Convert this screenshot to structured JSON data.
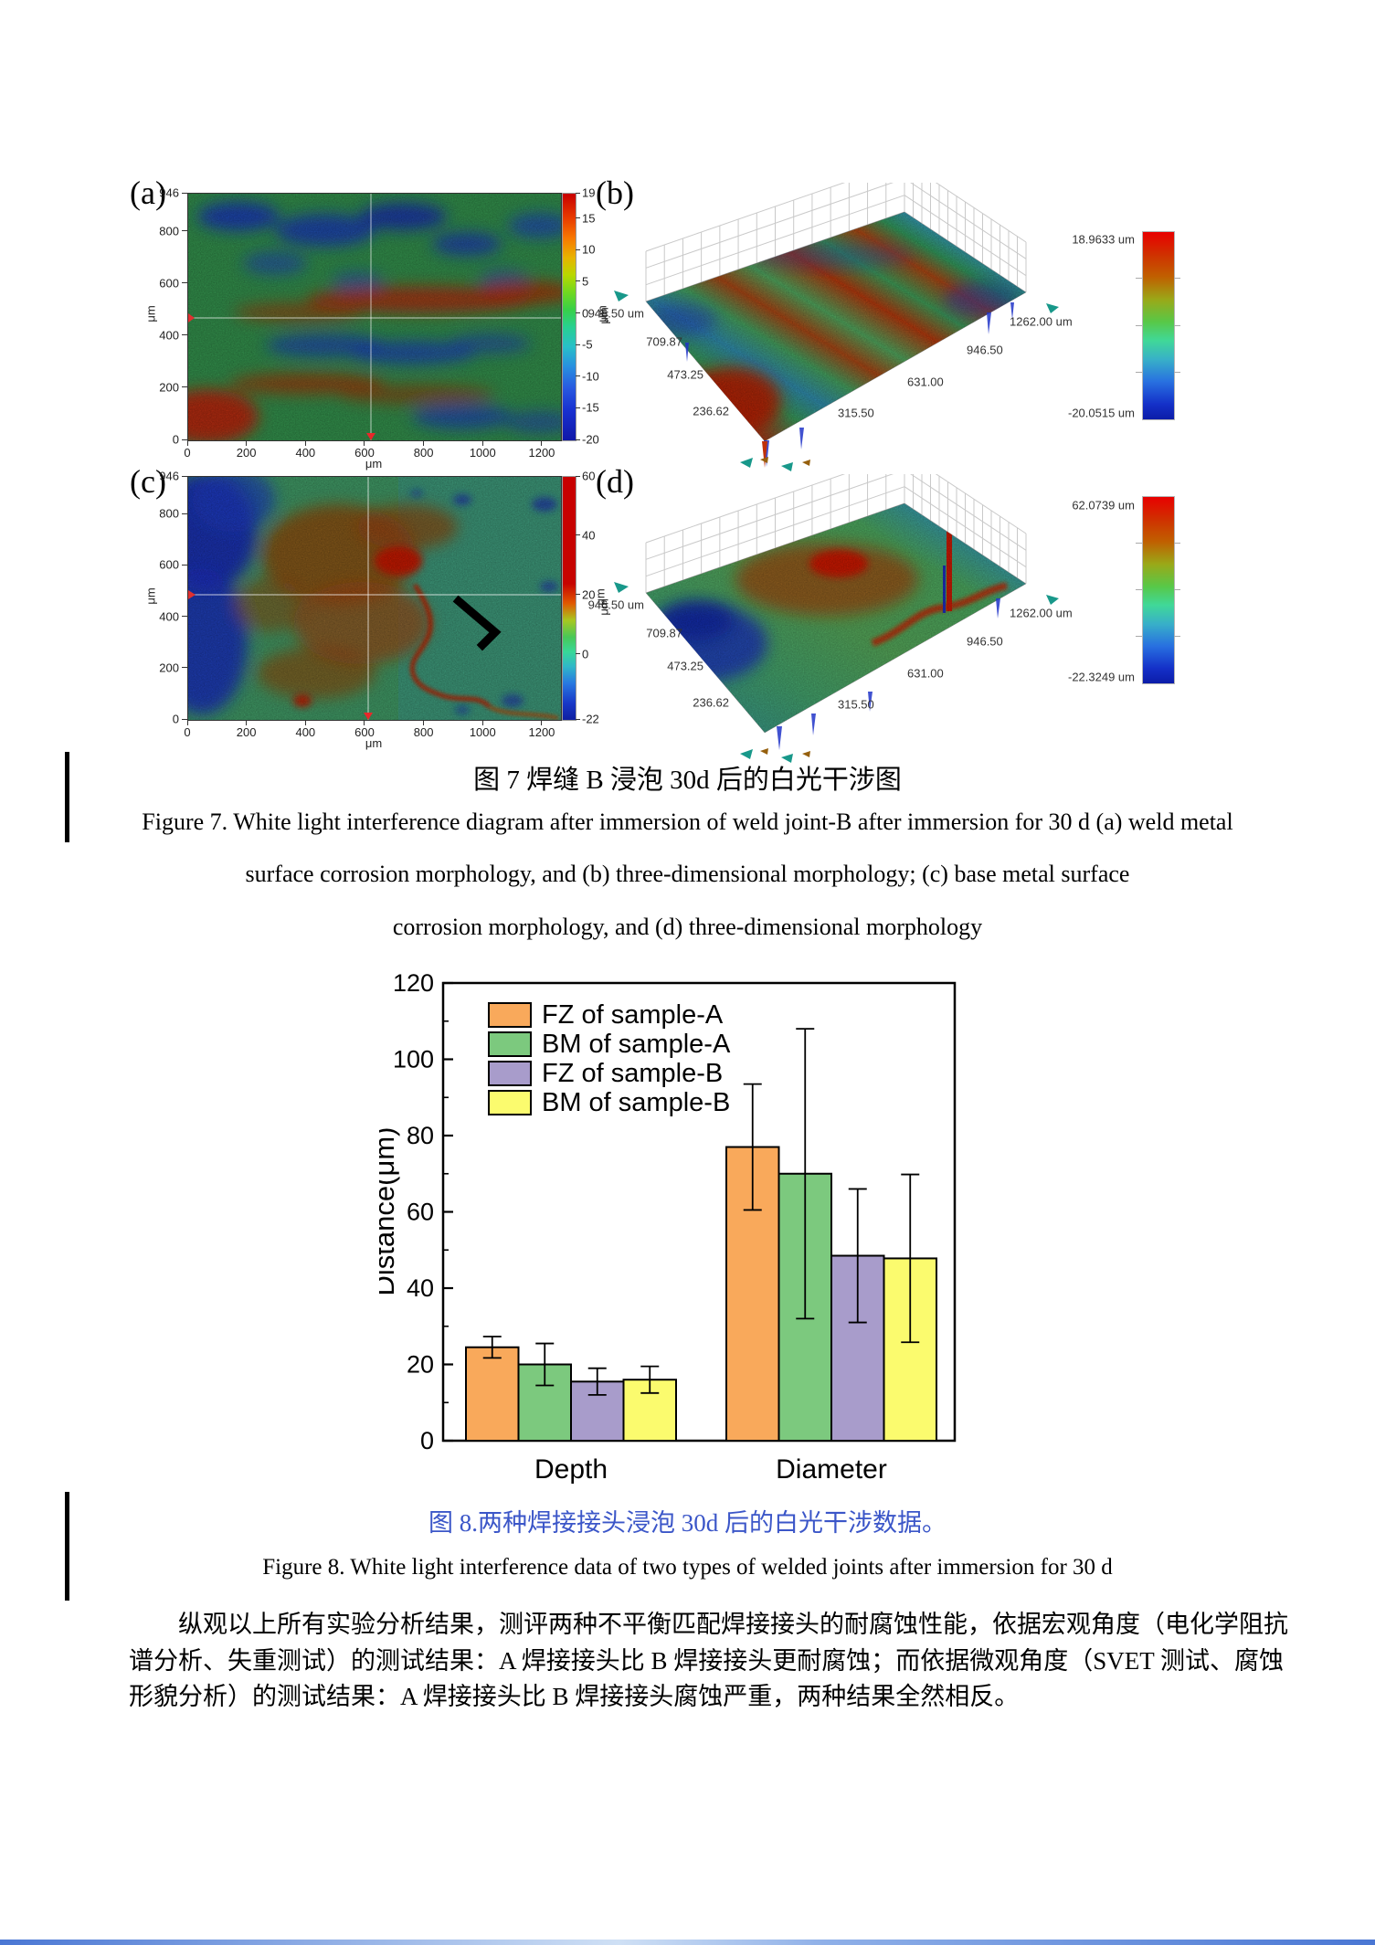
{
  "figure7": {
    "panel_a": {
      "label": "(a)",
      "y_ticks": [
        "946",
        "800",
        "600",
        "400",
        "200",
        "0"
      ],
      "x_ticks": [
        "0",
        "200",
        "400",
        "600",
        "800",
        "1000",
        "1200"
      ],
      "x_unit": "μm",
      "y_unit": "μm",
      "colorbar_ticks": [
        "19",
        "15",
        "10",
        "5",
        "0",
        "-5",
        "-10",
        "-15",
        "-20"
      ],
      "colorbar_unit": "μm"
    },
    "panel_b": {
      "label": "(b)",
      "left_ticks": [
        "946.50 um",
        "709.87",
        "473.25",
        "236.62"
      ],
      "right_ticks": [
        "1262.00 um",
        "946.50",
        "631.00",
        "315.50"
      ],
      "z_unit": "μm",
      "colorbar_top": "18.9633 um",
      "colorbar_bottom": "-20.0515 um"
    },
    "panel_c": {
      "label": "(c)",
      "y_ticks": [
        "946",
        "800",
        "600",
        "400",
        "200",
        "0"
      ],
      "x_ticks": [
        "0",
        "200",
        "400",
        "600",
        "800",
        "1000",
        "1200"
      ],
      "x_unit": "μm",
      "y_unit": "μm",
      "colorbar_ticks": [
        "60",
        "40",
        "20",
        "0",
        "-22"
      ],
      "colorbar_unit": "μm"
    },
    "panel_d": {
      "label": "(d)",
      "left_ticks": [
        "946.50 um",
        "709.87",
        "473.25",
        "236.62"
      ],
      "right_ticks": [
        "1262.00 um",
        "946.50",
        "631.00",
        "315.50"
      ],
      "z_unit": "μm",
      "colorbar_top": "62.0739 um",
      "colorbar_bottom": "-22.3249 um"
    },
    "caption_zh": "图 7  焊缝 B 浸泡 30d 后的白光干涉图",
    "caption_en_lines": [
      "Figure 7. White light interference diagram after immersion of weld joint-B after immersion for 30 d (a) weld metal",
      "surface corrosion morphology, and (b) three-dimensional morphology; (c) base metal surface",
      "corrosion morphology, and (d) three-dimensional morphology"
    ]
  },
  "chart_data": {
    "type": "bar",
    "title": "",
    "categories": [
      "Depth",
      "Diameter"
    ],
    "series": [
      {
        "name": "FZ of sample-A",
        "color": "#F9A95B",
        "values": [
          24.5,
          77
        ],
        "errors": [
          2.8,
          16.5
        ]
      },
      {
        "name": "BM of sample-A",
        "color": "#7CC97E",
        "values": [
          20,
          70
        ],
        "errors": [
          5.5,
          38
        ]
      },
      {
        "name": "FZ of sample-B",
        "color": "#A89CCB",
        "values": [
          15.5,
          48.5
        ],
        "errors": [
          3.5,
          17.5
        ]
      },
      {
        "name": "BM of sample-B",
        "color": "#FBFB6E",
        "values": [
          16,
          47.8
        ],
        "errors": [
          3.5,
          22
        ]
      }
    ],
    "ylabel": "Distance(μm)",
    "xlabel": "",
    "ylim": [
      0,
      120
    ],
    "yticks": [
      0,
      20,
      40,
      60,
      80,
      100,
      120
    ],
    "legend_position": "top-left",
    "grid": false
  },
  "figure8": {
    "caption_zh": "图 8.两种焊接接头浸泡 30d 后的白光干涉数据。",
    "caption_zh_color": "#3b56c8",
    "caption_en": "Figure 8. White light interference data of two types of welded joints after immersion for 30 d"
  },
  "body_text": {
    "lines": [
      "纵观以上所有实验分析结果，测评两种不平衡匹配焊接接头的耐腐蚀性能，依据宏观角度（电化学阻抗",
      "谱分析、失重测试）的测试结果：A 焊接接头比 B 焊接接头更耐腐蚀；而依据微观角度（SVET 测试、腐蚀",
      "形貌分析）的测试结果：A 焊接接头比 B 焊接接头腐蚀严重，两种结果全然相反。"
    ]
  }
}
